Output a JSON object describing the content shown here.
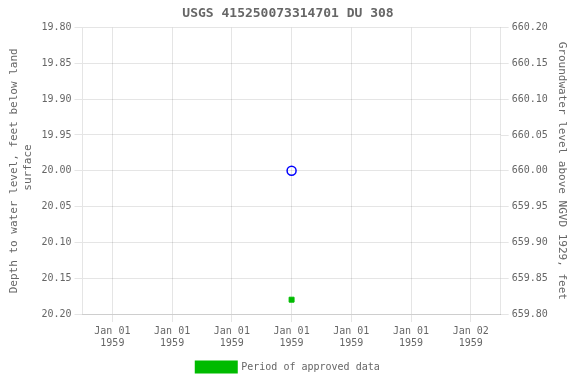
{
  "chart_data": {
    "type": "line",
    "title": "USGS 415250073314701 DU 308",
    "ylabel": "Depth to water level, feet below land\n surface",
    "y2label": "Groundwater level above NGVD 1929, feet",
    "categories": [
      "Jan 01\n1959",
      "Jan 01\n1959",
      "Jan 01\n1959",
      "Jan 01\n1959",
      "Jan 01\n1959",
      "Jan 01\n1959",
      "Jan 02\n1959"
    ],
    "series": [
      {
        "color": "blue",
        "marker": "circle_open",
        "line_style": "none",
        "values": [
          null,
          null,
          null,
          20.0,
          null,
          null,
          null
        ]
      },
      {
        "name": "Period of approved data",
        "color": "#00bb00",
        "marker": "square",
        "line_style": "none",
        "values": [
          null,
          null,
          null,
          20.18,
          null,
          null,
          null
        ]
      }
    ],
    "ylim": [
      20.2,
      19.8
    ],
    "yticks": [
      {
        "value": 19.8,
        "label": "19.80"
      },
      {
        "value": 19.85,
        "label": "19.85"
      },
      {
        "value": 19.9,
        "label": "19.90"
      },
      {
        "value": 19.95,
        "label": "19.95"
      },
      {
        "value": 20.0,
        "label": "20.00"
      },
      {
        "value": 20.05,
        "label": "20.05"
      },
      {
        "value": 20.1,
        "label": "20.10"
      },
      {
        "value": 20.15,
        "label": "20.15"
      },
      {
        "value": 20.2,
        "label": "20.20"
      }
    ],
    "y2lim": [
      659.8,
      660.2
    ],
    "y2ticks": [
      {
        "value": 659.8,
        "label": "659.80"
      },
      {
        "value": 659.85,
        "label": "659.85"
      },
      {
        "value": 659.9,
        "label": "659.90"
      },
      {
        "value": 659.95,
        "label": "659.95"
      },
      {
        "value": 660.0,
        "label": "660.00"
      },
      {
        "value": 660.05,
        "label": "660.05"
      },
      {
        "value": 660.1,
        "label": "660.10"
      },
      {
        "value": 660.15,
        "label": "660.15"
      },
      {
        "value": 660.2,
        "label": "660.20"
      }
    ],
    "grid": true,
    "legend": "bottom"
  }
}
